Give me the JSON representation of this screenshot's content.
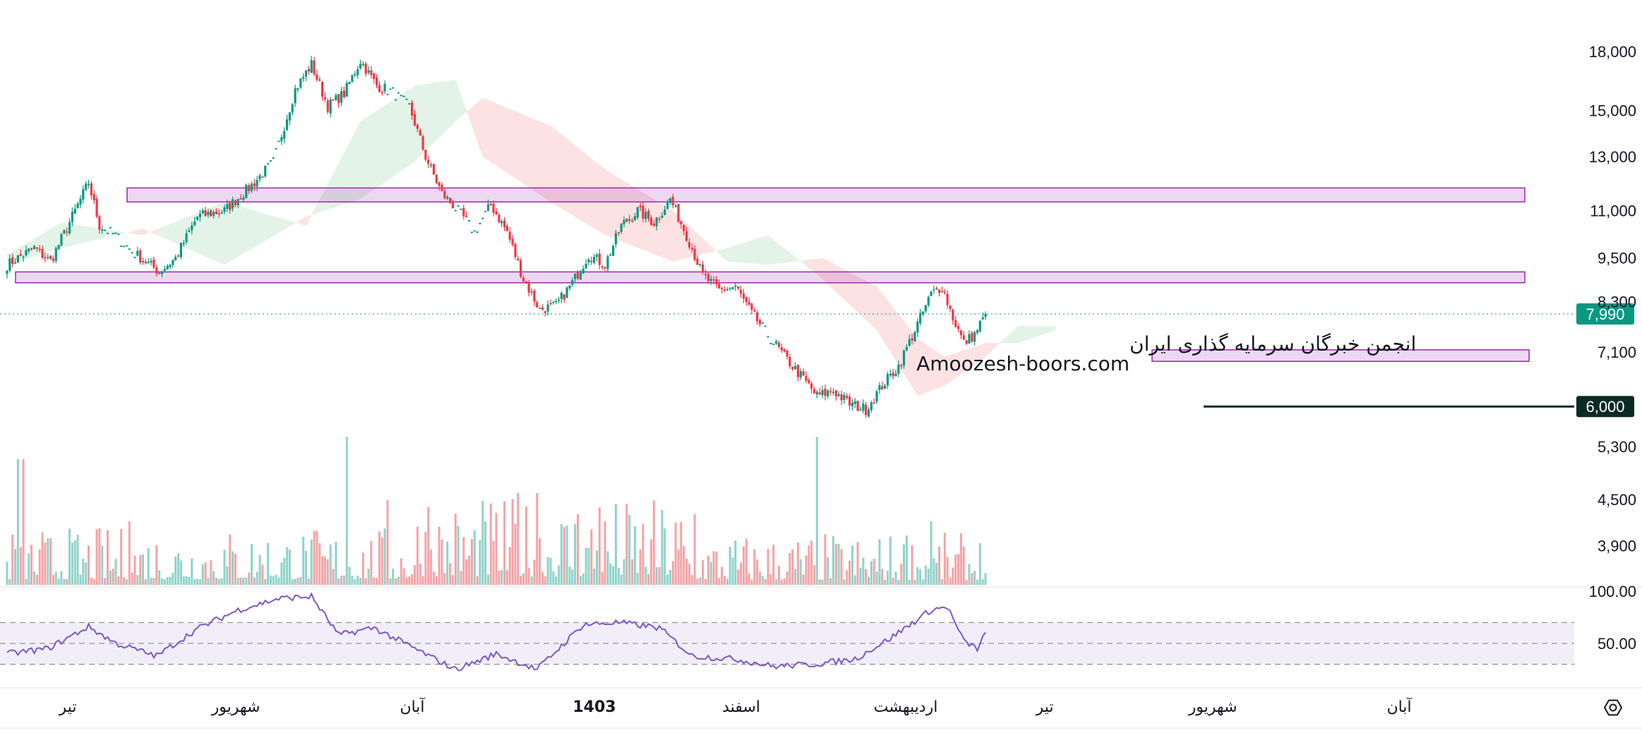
{
  "chart_data": {
    "type": "candlestick",
    "price_axis": {
      "scale": "log",
      "ticks": [
        "18,000",
        "15,000",
        "13,000",
        "11,000",
        "9,500",
        "8,300",
        "7,100",
        "5,300",
        "4,500",
        "3,900"
      ],
      "tick_values": [
        18000,
        15000,
        13000,
        11000,
        9500,
        8300,
        7100,
        5300,
        4500,
        3900
      ]
    },
    "time_axis": {
      "labels": [
        "تیر",
        "شهریور",
        "آبان",
        "1403",
        "اسفند",
        "اردیبهشت",
        "تیر",
        "شهریور",
        "آبان"
      ],
      "bold_label": "1403"
    },
    "last_price": {
      "value": 7990,
      "label": "7,990",
      "color": "#089981"
    },
    "level_line": {
      "value": 6000,
      "label": "6,000",
      "color": "#0b2a23"
    },
    "zones": [
      {
        "low": 11300,
        "high": 11800,
        "color": "#9c27b0"
      },
      {
        "low": 8800,
        "high": 9100,
        "color": "#9c27b0"
      },
      {
        "low": 6900,
        "high": 7150,
        "color": "#9c27b0"
      }
    ],
    "colors": {
      "up": "#089981",
      "down": "#f23645",
      "volume_up": "#8fd3c9",
      "volume_down": "#f5a3a6",
      "rsi": "#7e57c2"
    },
    "price_key_points": [
      {
        "bar": 0,
        "value": 9300
      },
      {
        "bar": 10,
        "value": 9800
      },
      {
        "bar": 16,
        "value": 9400
      },
      {
        "bar": 24,
        "value": 10800
      },
      {
        "bar": 30,
        "value": 12000
      },
      {
        "bar": 34,
        "value": 10500
      },
      {
        "bar": 40,
        "value": 10200
      },
      {
        "bar": 46,
        "value": 9700
      },
      {
        "bar": 56,
        "value": 9100
      },
      {
        "bar": 62,
        "value": 9500
      },
      {
        "bar": 70,
        "value": 10800
      },
      {
        "bar": 80,
        "value": 11000
      },
      {
        "bar": 90,
        "value": 11900
      },
      {
        "bar": 98,
        "value": 12800
      },
      {
        "bar": 106,
        "value": 16000
      },
      {
        "bar": 112,
        "value": 17300
      },
      {
        "bar": 118,
        "value": 15200
      },
      {
        "bar": 124,
        "value": 15800
      },
      {
        "bar": 130,
        "value": 17500
      },
      {
        "bar": 136,
        "value": 16200
      },
      {
        "bar": 142,
        "value": 15900
      },
      {
        "bar": 148,
        "value": 15200
      },
      {
        "bar": 154,
        "value": 13000
      },
      {
        "bar": 160,
        "value": 11600
      },
      {
        "bar": 166,
        "value": 11000
      },
      {
        "bar": 172,
        "value": 10300
      },
      {
        "bar": 178,
        "value": 11200
      },
      {
        "bar": 184,
        "value": 10300
      },
      {
        "bar": 190,
        "value": 8900
      },
      {
        "bar": 196,
        "value": 8100
      },
      {
        "bar": 202,
        "value": 8200
      },
      {
        "bar": 208,
        "value": 8800
      },
      {
        "bar": 214,
        "value": 9600
      },
      {
        "bar": 220,
        "value": 9300
      },
      {
        "bar": 226,
        "value": 10500
      },
      {
        "bar": 232,
        "value": 11000
      },
      {
        "bar": 238,
        "value": 10600
      },
      {
        "bar": 244,
        "value": 11400
      },
      {
        "bar": 250,
        "value": 10200
      },
      {
        "bar": 256,
        "value": 9000
      },
      {
        "bar": 262,
        "value": 8600
      },
      {
        "bar": 268,
        "value": 8700
      },
      {
        "bar": 274,
        "value": 8000
      },
      {
        "bar": 280,
        "value": 7500
      },
      {
        "bar": 286,
        "value": 7000
      },
      {
        "bar": 292,
        "value": 6600
      },
      {
        "bar": 298,
        "value": 6200
      },
      {
        "bar": 304,
        "value": 6300
      },
      {
        "bar": 310,
        "value": 6050
      },
      {
        "bar": 316,
        "value": 5950
      },
      {
        "bar": 322,
        "value": 6400
      },
      {
        "bar": 328,
        "value": 6800
      },
      {
        "bar": 334,
        "value": 7600
      },
      {
        "bar": 340,
        "value": 8500
      },
      {
        "bar": 344,
        "value": 8700
      },
      {
        "bar": 348,
        "value": 7900
      },
      {
        "bar": 352,
        "value": 7300
      },
      {
        "bar": 356,
        "value": 7500
      },
      {
        "bar": 360,
        "value": 7990
      }
    ],
    "bar_count": 361,
    "cloud_key_points": [
      {
        "bar": 0,
        "a": 9600,
        "b": 9300
      },
      {
        "bar": 20,
        "a": 10600,
        "b": 9800
      },
      {
        "bar": 50,
        "a": 10200,
        "b": 10400
      },
      {
        "bar": 80,
        "a": 11300,
        "b": 9300
      },
      {
        "bar": 110,
        "a": 10500,
        "b": 10800
      },
      {
        "bar": 130,
        "a": 14500,
        "b": 11400
      },
      {
        "bar": 150,
        "a": 16200,
        "b": 12800
      },
      {
        "bar": 165,
        "a": 16500,
        "b": 14500
      },
      {
        "bar": 175,
        "a": 13000,
        "b": 15600
      },
      {
        "bar": 200,
        "a": 11300,
        "b": 14300
      },
      {
        "bar": 220,
        "a": 10200,
        "b": 12500
      },
      {
        "bar": 245,
        "a": 9400,
        "b": 11000
      },
      {
        "bar": 265,
        "a": 9800,
        "b": 9400
      },
      {
        "bar": 280,
        "a": 10200,
        "b": 9300
      },
      {
        "bar": 300,
        "a": 8900,
        "b": 9500
      },
      {
        "bar": 320,
        "a": 7600,
        "b": 8700
      },
      {
        "bar": 335,
        "a": 6200,
        "b": 7400
      },
      {
        "bar": 345,
        "a": 6400,
        "b": 7000
      },
      {
        "bar": 360,
        "a": 7000,
        "b": 7300
      },
      {
        "bar": 372,
        "a": 7700,
        "b": 7300
      },
      {
        "bar": 386,
        "a": 7700,
        "b": 7600
      }
    ],
    "rsi": {
      "ticks": [
        "100.00",
        "50.00"
      ],
      "tick_values": [
        100,
        50
      ],
      "bands": [
        70,
        30
      ],
      "key_points": [
        {
          "bar": 0,
          "value": 40
        },
        {
          "bar": 15,
          "value": 45
        },
        {
          "bar": 30,
          "value": 66
        },
        {
          "bar": 40,
          "value": 50
        },
        {
          "bar": 55,
          "value": 38
        },
        {
          "bar": 70,
          "value": 64
        },
        {
          "bar": 85,
          "value": 82
        },
        {
          "bar": 100,
          "value": 93
        },
        {
          "bar": 112,
          "value": 95
        },
        {
          "bar": 122,
          "value": 58
        },
        {
          "bar": 135,
          "value": 65
        },
        {
          "bar": 150,
          "value": 45
        },
        {
          "bar": 165,
          "value": 25
        },
        {
          "bar": 180,
          "value": 40
        },
        {
          "bar": 195,
          "value": 25
        },
        {
          "bar": 212,
          "value": 68
        },
        {
          "bar": 225,
          "value": 70
        },
        {
          "bar": 240,
          "value": 65
        },
        {
          "bar": 252,
          "value": 38
        },
        {
          "bar": 268,
          "value": 35
        },
        {
          "bar": 282,
          "value": 28
        },
        {
          "bar": 297,
          "value": 30
        },
        {
          "bar": 312,
          "value": 35
        },
        {
          "bar": 325,
          "value": 55
        },
        {
          "bar": 340,
          "value": 82
        },
        {
          "bar": 346,
          "value": 85
        },
        {
          "bar": 352,
          "value": 52
        },
        {
          "bar": 357,
          "value": 45
        },
        {
          "bar": 360,
          "value": 60
        }
      ]
    }
  },
  "watermark": {
    "line1": "انجمن خبرگان سرمایه گذاری ایران",
    "line2": "Amoozesh-boors.com"
  },
  "icons": {
    "settings": "gear-icon"
  }
}
